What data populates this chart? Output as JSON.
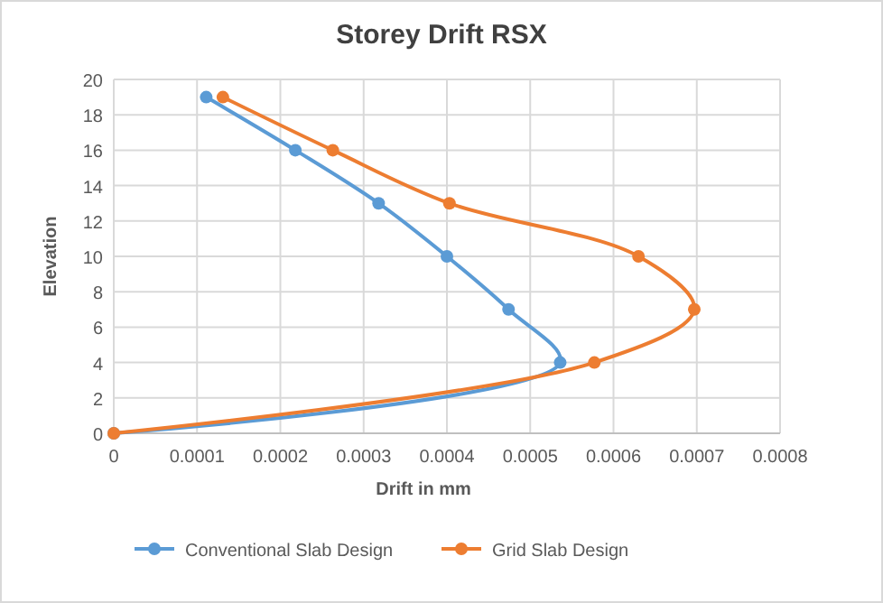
{
  "chart_data": {
    "type": "line",
    "title": "Storey Drift RSX",
    "xlabel": "Drift in mm",
    "ylabel": "Elevation",
    "series": [
      {
        "name": "Conventional Slab Design",
        "color": "#5b9bd5",
        "x": [
          0,
          0.000536,
          0.000474,
          0.0004,
          0.000318,
          0.000218,
          0.000111
        ],
        "values": [
          0,
          4,
          7,
          10,
          13,
          16,
          19
        ]
      },
      {
        "name": "Grid Slab Design",
        "color": "#ed7d31",
        "x": [
          0,
          0.000577,
          0.000697,
          0.00063,
          0.000403,
          0.000263,
          0.000131
        ],
        "values": [
          0,
          4,
          7,
          10,
          13,
          16,
          19
        ]
      }
    ],
    "xlim": [
      0,
      0.0008
    ],
    "xticks": [
      0,
      0.0001,
      0.0002,
      0.0003,
      0.0004,
      0.0005,
      0.0006,
      0.0007,
      0.0008
    ],
    "ylim": [
      0,
      20
    ],
    "yticks": [
      0,
      2,
      4,
      6,
      8,
      10,
      12,
      14,
      16,
      18,
      20
    ],
    "grid": true,
    "legend": "bottom",
    "marker": "circle",
    "line_style": "solid"
  }
}
